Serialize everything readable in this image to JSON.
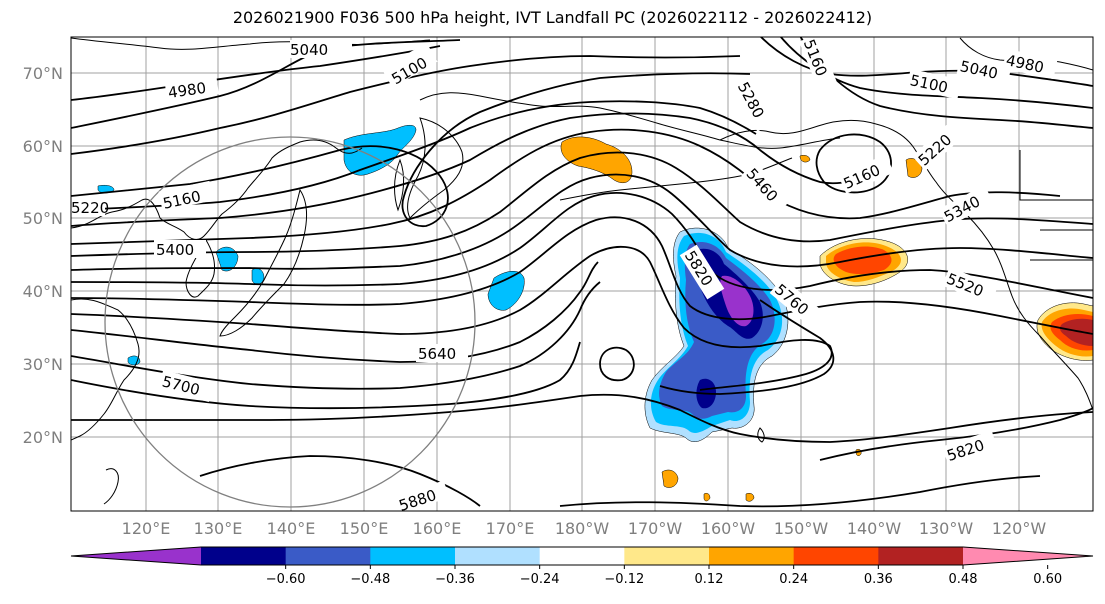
{
  "title": "2026021900 F036 500 hPa height, IVT Landfall PC (2026022112 - 2026022412)",
  "lat_labels": [
    "70°N",
    "60°N",
    "50°N",
    "40°N",
    "30°N",
    "20°N"
  ],
  "lon_labels": [
    "120°E",
    "130°E",
    "140°E",
    "150°E",
    "160°E",
    "170°E",
    "180°W",
    "170°W",
    "160°W",
    "150°W",
    "140°W",
    "130°W",
    "120°W"
  ],
  "contour_labels": [
    "5040",
    "5100",
    "4980",
    "5160",
    "5220",
    "5400",
    "5700",
    "5640",
    "5880",
    "5280",
    "5460",
    "5820",
    "5760",
    "5160",
    "5100",
    "5040",
    "4980",
    "5220",
    "5340",
    "5520",
    "5820",
    "5160"
  ],
  "colorbar": {
    "ticks": [
      "−0.60",
      "−0.48",
      "−0.36",
      "−0.24",
      "−0.12",
      "0.12",
      "0.24",
      "0.36",
      "0.48",
      "0.60"
    ],
    "colors": [
      "#9932cc",
      "#00008b",
      "#3a5bc7",
      "#00bfff",
      "#b0e0ff",
      "#ffffff",
      "#ffe88a",
      "#ffa500",
      "#ff4500",
      "#b22222",
      "#ff8ab0"
    ]
  },
  "colors": {
    "contour": "#000000",
    "coast": "#000000",
    "grid": "#a0a0a0",
    "circle": "#808080",
    "neg_strong": "#9932cc",
    "neg_1": "#00008b",
    "neg_2": "#3a5bc7",
    "neg_3": "#00bfff",
    "neg_4": "#b0e0ff",
    "pos_1": "#ffe88a",
    "pos_2": "#ffa500",
    "pos_3": "#ff4500",
    "pos_4": "#b22222"
  }
}
